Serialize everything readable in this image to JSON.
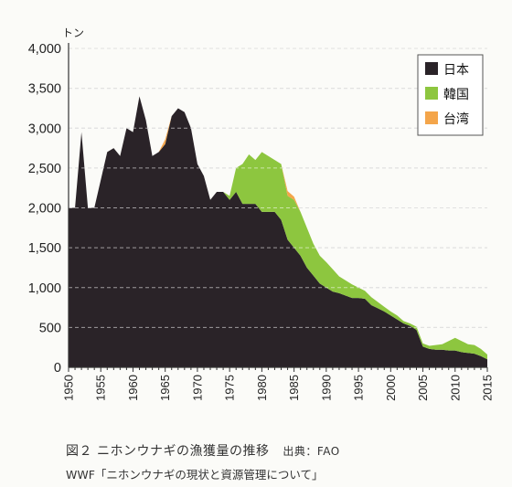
{
  "caption": {
    "title": "図２ ニホンウナギの漁獲量の推移",
    "source": "出典：FAO",
    "subline": "WWF「ニホンウナギの現状と資源管理について」"
  },
  "chart_data": {
    "type": "area",
    "stacked": true,
    "y_unit": "トン",
    "ylim": [
      0,
      4000
    ],
    "y_ticks": [
      0,
      500,
      1000,
      1500,
      2000,
      2500,
      3000,
      3500,
      4000
    ],
    "y_tick_labels": [
      "0",
      "500",
      "1,000",
      "1,500",
      "2,000",
      "2,500",
      "3,000",
      "3,500",
      "4,000"
    ],
    "xlim": [
      1950,
      2015
    ],
    "x_ticks": [
      1950,
      1955,
      1960,
      1965,
      1970,
      1975,
      1980,
      1985,
      1990,
      1995,
      2000,
      2005,
      2010,
      2015
    ],
    "grid": true,
    "legend_position": "top-right",
    "x": [
      1950,
      1951,
      1952,
      1953,
      1954,
      1955,
      1956,
      1957,
      1958,
      1959,
      1960,
      1961,
      1962,
      1963,
      1964,
      1965,
      1966,
      1967,
      1968,
      1969,
      1970,
      1971,
      1972,
      1973,
      1974,
      1975,
      1976,
      1977,
      1978,
      1979,
      1980,
      1981,
      1982,
      1983,
      1984,
      1985,
      1986,
      1987,
      1988,
      1989,
      1990,
      1991,
      1992,
      1993,
      1994,
      1995,
      1996,
      1997,
      1998,
      1999,
      2000,
      2001,
      2002,
      2003,
      2004,
      2005,
      2006,
      2007,
      2008,
      2009,
      2010,
      2011,
      2012,
      2013,
      2014,
      2015
    ],
    "series": [
      {
        "name": "日本",
        "color": "#2a2328",
        "values": [
          2000,
          2000,
          2950,
          2000,
          2000,
          2350,
          2700,
          2750,
          2650,
          3000,
          2950,
          3400,
          3100,
          2650,
          2700,
          2800,
          3150,
          3250,
          3200,
          3000,
          2550,
          2400,
          2100,
          2200,
          2200,
          2100,
          2200,
          2050,
          2050,
          2050,
          1950,
          1950,
          1950,
          1850,
          1600,
          1500,
          1400,
          1250,
          1150,
          1050,
          1000,
          950,
          930,
          900,
          870,
          870,
          860,
          780,
          740,
          700,
          650,
          600,
          550,
          520,
          470,
          260,
          230,
          220,
          220,
          210,
          210,
          190,
          180,
          170,
          140,
          100
        ]
      },
      {
        "name": "韓国",
        "color": "#8dc63f",
        "values": [
          0,
          0,
          0,
          0,
          0,
          0,
          0,
          0,
          0,
          0,
          0,
          0,
          0,
          0,
          0,
          0,
          0,
          0,
          0,
          0,
          0,
          0,
          0,
          0,
          0,
          50,
          300,
          500,
          620,
          550,
          750,
          700,
          650,
          700,
          550,
          600,
          550,
          500,
          400,
          350,
          320,
          280,
          210,
          190,
          170,
          130,
          100,
          100,
          80,
          60,
          50,
          50,
          30,
          30,
          40,
          40,
          40,
          60,
          70,
          120,
          160,
          140,
          110,
          110,
          90,
          60
        ]
      },
      {
        "name": "台湾",
        "color": "#f4a54a",
        "values": [
          0,
          0,
          0,
          0,
          0,
          0,
          0,
          0,
          0,
          0,
          0,
          0,
          0,
          0,
          0,
          60,
          0,
          0,
          0,
          0,
          0,
          0,
          0,
          0,
          0,
          0,
          0,
          0,
          0,
          0,
          0,
          0,
          0,
          0,
          60,
          40,
          0,
          0,
          0,
          0,
          0,
          0,
          0,
          0,
          0,
          0,
          0,
          0,
          0,
          0,
          0,
          0,
          0,
          0,
          0,
          0,
          0,
          0,
          0,
          0,
          0,
          0,
          0,
          0,
          0,
          0
        ]
      }
    ]
  }
}
